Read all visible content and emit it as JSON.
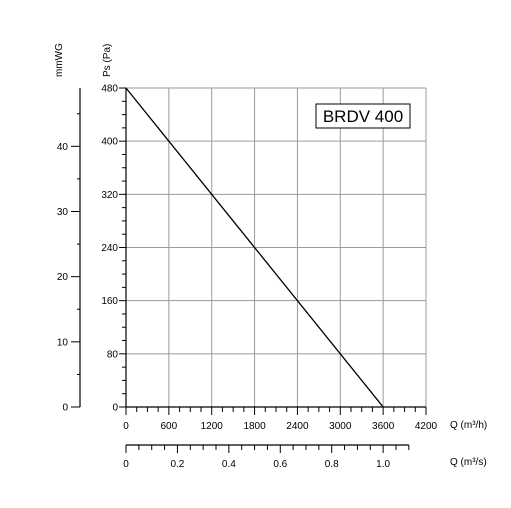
{
  "chart_data": {
    "type": "line",
    "title": "",
    "model_label": "BRDV 400",
    "x_primary": {
      "label": "Q (m³/h)",
      "range": [
        0,
        4200
      ],
      "major_ticks": [
        0,
        600,
        1200,
        1800,
        2400,
        3000,
        3600,
        4200
      ],
      "tick_labels": [
        "0",
        "600",
        "1200",
        "1800",
        "2400",
        "3000",
        "3600",
        "4200"
      ]
    },
    "x_secondary": {
      "label": "Q (m³/s)",
      "range": [
        0,
        1.1667
      ],
      "major_ticks": [
        0,
        0.2,
        0.4,
        0.6,
        0.8,
        1.0
      ],
      "tick_labels": [
        "0",
        "0.2",
        "0.4",
        "0.6",
        "0.8",
        "1.0"
      ]
    },
    "y_primary": {
      "label": "Ps (Pa)",
      "range": [
        0,
        480
      ],
      "major_ticks": [
        0,
        80,
        160,
        240,
        320,
        400,
        480
      ],
      "tick_labels": [
        "0",
        "80",
        "160",
        "240",
        "320",
        "400",
        "480"
      ]
    },
    "y_secondary": {
      "label": "mmWG",
      "range": [
        0,
        48.95
      ],
      "major_ticks": [
        0,
        10,
        20,
        30,
        40
      ],
      "tick_labels": [
        "0",
        "10",
        "20",
        "30",
        "40"
      ]
    },
    "grid": true,
    "series": [
      {
        "x": [
          0,
          3600
        ],
        "y": [
          480,
          0
        ]
      }
    ]
  }
}
